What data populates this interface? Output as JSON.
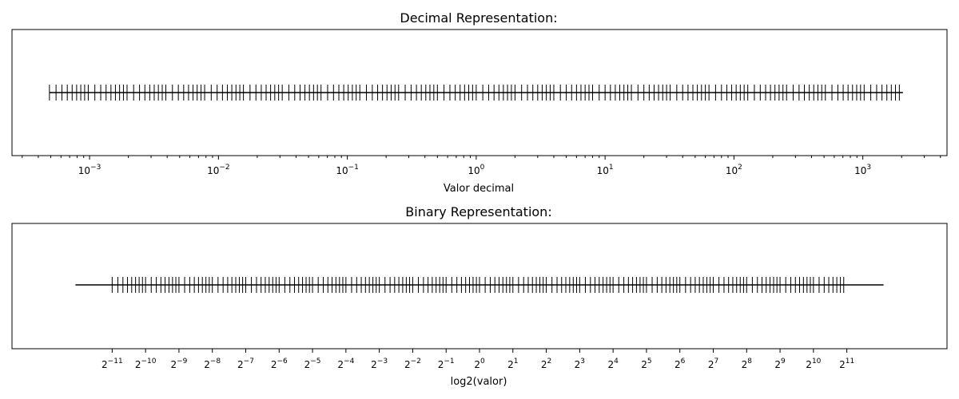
{
  "chart_data": [
    {
      "type": "eventplot",
      "title": "Decimal Representation:",
      "xlabel": "Valor decimal",
      "ylabel": "",
      "xscale": "log",
      "xlim": [
        0.00025,
        4500
      ],
      "series_rule": "m × 2^e for m in [1, 1.125, 1.25, 1.375, 1.5, 1.625, 1.75, 1.875], e from -11 to 10",
      "mantissas": [
        1,
        1.125,
        1.25,
        1.375,
        1.5,
        1.625,
        1.75,
        1.875
      ],
      "exponent_range": [
        -11,
        10
      ],
      "baseline_range": [
        0.00048828125,
        2048
      ],
      "tick_labels": [
        {
          "base": "10",
          "exp": "−3",
          "value": 0.001
        },
        {
          "base": "10",
          "exp": "−2",
          "value": 0.01
        },
        {
          "base": "10",
          "exp": "−1",
          "value": 0.1
        },
        {
          "base": "10",
          "exp": "0",
          "value": 1
        },
        {
          "base": "10",
          "exp": "1",
          "value": 10
        },
        {
          "base": "10",
          "exp": "2",
          "value": 100
        },
        {
          "base": "10",
          "exp": "3",
          "value": 1000
        }
      ],
      "grid": false,
      "legend": "none"
    },
    {
      "type": "eventplot",
      "title": "Binary Representation:",
      "xlabel": "log2(valor)",
      "ylabel": "",
      "xscale": "log2",
      "xlim": [
        -14,
        14
      ],
      "mantissas": [
        1,
        1.125,
        1.25,
        1.375,
        1.5,
        1.625,
        1.75,
        1.875
      ],
      "exponent_range": [
        -11,
        10
      ],
      "baseline_range": [
        -12.1,
        12.1
      ],
      "tick_labels": [
        {
          "base": "2",
          "exp": "−11",
          "value": -11
        },
        {
          "base": "2",
          "exp": "−10",
          "value": -10
        },
        {
          "base": "2",
          "exp": "−9",
          "value": -9
        },
        {
          "base": "2",
          "exp": "−8",
          "value": -8
        },
        {
          "base": "2",
          "exp": "−7",
          "value": -7
        },
        {
          "base": "2",
          "exp": "−6",
          "value": -6
        },
        {
          "base": "2",
          "exp": "−5",
          "value": -5
        },
        {
          "base": "2",
          "exp": "−4",
          "value": -4
        },
        {
          "base": "2",
          "exp": "−3",
          "value": -3
        },
        {
          "base": "2",
          "exp": "−2",
          "value": -2
        },
        {
          "base": "2",
          "exp": "−1",
          "value": -1
        },
        {
          "base": "2",
          "exp": "0",
          "value": 0
        },
        {
          "base": "2",
          "exp": "1",
          "value": 1
        },
        {
          "base": "2",
          "exp": "2",
          "value": 2
        },
        {
          "base": "2",
          "exp": "3",
          "value": 3
        },
        {
          "base": "2",
          "exp": "4",
          "value": 4
        },
        {
          "base": "2",
          "exp": "5",
          "value": 5
        },
        {
          "base": "2",
          "exp": "6",
          "value": 6
        },
        {
          "base": "2",
          "exp": "7",
          "value": 7
        },
        {
          "base": "2",
          "exp": "8",
          "value": 8
        },
        {
          "base": "2",
          "exp": "9",
          "value": 9
        },
        {
          "base": "2",
          "exp": "10",
          "value": 10
        },
        {
          "base": "2",
          "exp": "11",
          "value": 11
        }
      ],
      "grid": false,
      "legend": "none"
    }
  ],
  "colors": {
    "line": "#000000",
    "frame": "#000000",
    "background": "#ffffff"
  }
}
